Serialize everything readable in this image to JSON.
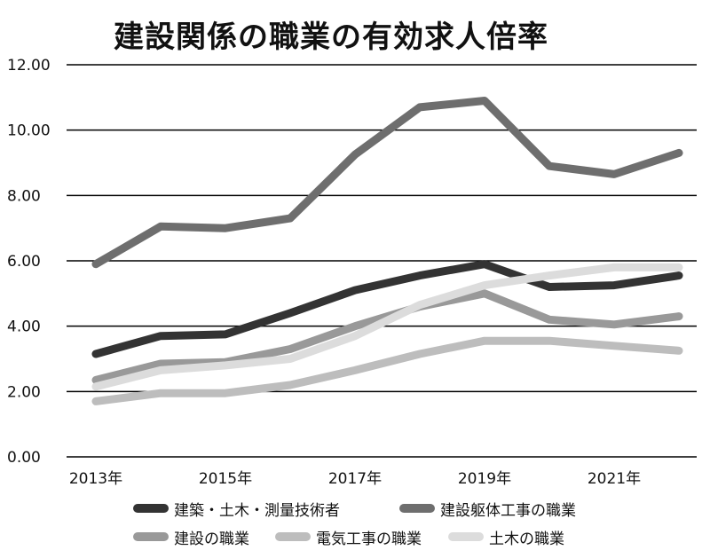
{
  "chart_data": {
    "type": "line",
    "title": "建設関係の職業の有効求人倍率",
    "x": [
      2013,
      2014,
      2015,
      2016,
      2017,
      2018,
      2019,
      2020,
      2021,
      2022
    ],
    "x_tick_labels": [
      "2013年",
      "2015年",
      "2017年",
      "2019年",
      "2021年"
    ],
    "x_tick_values": [
      2013,
      2015,
      2017,
      2019,
      2021
    ],
    "y_tick_labels": [
      "0.00",
      "2.00",
      "4.00",
      "6.00",
      "8.00",
      "10.00",
      "12.00"
    ],
    "ylim": [
      0,
      12
    ],
    "grid": "horizontal",
    "legend_position": "bottom",
    "series": [
      {
        "name": "建築・土木・測量技術者",
        "color": "#333333",
        "values": [
          3.15,
          3.7,
          3.75,
          4.4,
          5.1,
          5.55,
          5.9,
          5.2,
          5.25,
          5.55
        ]
      },
      {
        "name": "建設躯体工事の職業",
        "color": "#6e6e6e",
        "values": [
          5.9,
          7.05,
          7.0,
          7.3,
          9.25,
          10.7,
          10.9,
          8.9,
          8.65,
          9.3
        ]
      },
      {
        "name": "建設の職業",
        "color": "#999999",
        "values": [
          2.35,
          2.85,
          2.9,
          3.3,
          4.0,
          4.6,
          5.0,
          4.2,
          4.05,
          4.3
        ]
      },
      {
        "name": "電気工事の職業",
        "color": "#bdbdbd",
        "values": [
          1.7,
          1.95,
          1.95,
          2.2,
          2.65,
          3.15,
          3.55,
          3.55,
          3.4,
          3.25
        ]
      },
      {
        "name": "土木の職業",
        "color": "#dcdcdc",
        "values": [
          2.15,
          2.65,
          2.8,
          3.0,
          3.7,
          4.65,
          5.25,
          5.55,
          5.8,
          5.8
        ]
      }
    ]
  }
}
